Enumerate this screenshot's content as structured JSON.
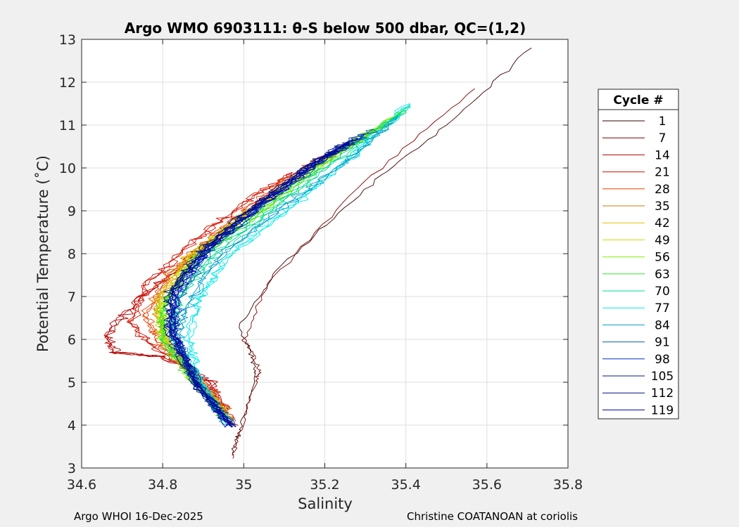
{
  "chart_data": {
    "type": "line",
    "title": "Argo WMO 6903111: θ-S below 500 dbar,  QC=(1,2)",
    "xlabel": "Salinity",
    "ylabel": "Potential Temperature (˚C)",
    "xlim": [
      34.6,
      35.8
    ],
    "ylim": [
      3,
      13
    ],
    "xticks": [
      "34.6",
      "34.8",
      "35",
      "35.2",
      "35.4",
      "35.6",
      "35.8"
    ],
    "yticks": [
      "3",
      "4",
      "5",
      "6",
      "7",
      "8",
      "9",
      "10",
      "11",
      "12",
      "13"
    ],
    "grid": true,
    "legend_title": "Cycle #",
    "legend_position": "right",
    "series": [
      {
        "name": "1",
        "color": "#3a0000",
        "salinity": [
          34.97,
          34.99,
          35.03,
          35.02,
          34.99,
          35.08,
          35.3,
          35.5,
          35.71
        ],
        "theta": [
          3.3,
          3.9,
          5.2,
          5.6,
          6.3,
          7.6,
          9.5,
          11.0,
          12.8
        ]
      },
      {
        "name": "7",
        "color": "#800000",
        "salinity": [
          34.97,
          34.99,
          35.03,
          35.04,
          35.0,
          35.06,
          35.3,
          35.57
        ],
        "theta": [
          3.2,
          3.8,
          5.0,
          5.3,
          6.0,
          7.3,
          9.7,
          11.85
        ]
      },
      {
        "name": "14",
        "color": "#b30000",
        "salinity": [
          34.97,
          34.92,
          34.8,
          34.68,
          34.66,
          34.75,
          34.9,
          35.05
        ],
        "theta": [
          4.0,
          5.0,
          5.6,
          5.7,
          6.1,
          7.0,
          8.1,
          9.3
        ]
      },
      {
        "name": "21",
        "color": "#d01000",
        "salinity": [
          34.97,
          34.9,
          34.78,
          34.72,
          34.76,
          34.88,
          35.0,
          35.12
        ],
        "theta": [
          4.1,
          5.1,
          5.8,
          6.4,
          7.3,
          8.3,
          9.2,
          9.9
        ]
      },
      {
        "name": "28",
        "color": "#e84000",
        "salinity": [
          34.96,
          34.88,
          34.79,
          34.76,
          34.82,
          34.95,
          35.1,
          35.2
        ],
        "theta": [
          4.2,
          5.1,
          5.9,
          6.6,
          7.6,
          8.6,
          9.7,
          10.3
        ]
      },
      {
        "name": "35",
        "color": "#d07a00",
        "salinity": [
          34.96,
          34.88,
          34.8,
          34.78,
          34.85,
          35.0,
          35.15,
          35.28
        ],
        "theta": [
          4.3,
          5.2,
          6.0,
          6.8,
          7.8,
          8.9,
          9.9,
          10.6
        ]
      },
      {
        "name": "42",
        "color": "#e0c000",
        "salinity": [
          34.96,
          34.87,
          34.8,
          34.79,
          34.86,
          35.02,
          35.2,
          35.35
        ],
        "theta": [
          4.2,
          5.2,
          6.1,
          6.9,
          7.9,
          9.0,
          10.2,
          11.0
        ]
      },
      {
        "name": "49",
        "color": "#c8e000",
        "salinity": [
          34.96,
          34.87,
          34.8,
          34.8,
          34.88,
          35.03,
          35.22,
          35.38
        ],
        "theta": [
          4.2,
          5.1,
          6.1,
          6.9,
          8.0,
          9.1,
          10.3,
          11.2
        ]
      },
      {
        "name": "56",
        "color": "#80f000",
        "salinity": [
          34.96,
          34.87,
          34.8,
          34.8,
          34.88,
          35.04,
          35.22,
          35.39
        ],
        "theta": [
          4.1,
          5.1,
          6.0,
          6.8,
          7.9,
          9.0,
          10.3,
          11.3
        ]
      },
      {
        "name": "63",
        "color": "#30e030",
        "salinity": [
          34.96,
          34.87,
          34.8,
          34.8,
          34.89,
          35.05,
          35.23,
          35.4
        ],
        "theta": [
          4.1,
          5.1,
          6.0,
          6.8,
          7.9,
          9.0,
          10.3,
          11.35
        ]
      },
      {
        "name": "70",
        "color": "#00d890",
        "salinity": [
          34.96,
          34.88,
          34.82,
          34.84,
          34.93,
          35.08,
          35.25,
          35.41
        ],
        "theta": [
          4.1,
          5.1,
          6.1,
          7.0,
          8.0,
          9.1,
          10.3,
          11.45
        ]
      },
      {
        "name": "77",
        "color": "#00e8e8",
        "salinity": [
          34.96,
          34.89,
          34.86,
          34.9,
          34.98,
          35.12,
          35.27,
          35.41
        ],
        "theta": [
          4.1,
          5.1,
          6.1,
          7.1,
          8.1,
          9.1,
          10.3,
          11.5
        ]
      },
      {
        "name": "84",
        "color": "#00a0c8",
        "salinity": [
          34.96,
          34.89,
          34.84,
          34.87,
          34.95,
          35.1,
          35.26,
          35.38
        ],
        "theta": [
          4.0,
          5.0,
          6.0,
          7.0,
          8.0,
          9.1,
          10.2,
          11.2
        ]
      },
      {
        "name": "91",
        "color": "#0060b0",
        "salinity": [
          34.97,
          34.88,
          34.83,
          34.84,
          34.92,
          35.06,
          35.2,
          35.32
        ],
        "theta": [
          4.0,
          5.0,
          6.1,
          7.0,
          8.1,
          9.2,
          10.2,
          10.9
        ]
      },
      {
        "name": "98",
        "color": "#0030c0",
        "salinity": [
          34.97,
          34.88,
          34.82,
          34.83,
          34.91,
          35.05,
          35.19,
          35.3
        ],
        "theta": [
          4.0,
          5.0,
          6.1,
          7.0,
          8.1,
          9.2,
          10.2,
          10.8
        ]
      },
      {
        "name": "105",
        "color": "#001890",
        "salinity": [
          34.97,
          34.88,
          34.82,
          34.82,
          34.9,
          35.04,
          35.18,
          35.28
        ],
        "theta": [
          3.95,
          5.0,
          6.2,
          7.1,
          8.1,
          9.2,
          10.2,
          10.7
        ]
      },
      {
        "name": "112",
        "color": "#000c80",
        "salinity": [
          34.97,
          34.88,
          34.82,
          34.82,
          34.9,
          35.04,
          35.17,
          35.26
        ],
        "theta": [
          3.95,
          5.0,
          6.2,
          7.1,
          8.1,
          9.2,
          10.1,
          10.6
        ]
      },
      {
        "name": "119",
        "color": "#0000a8",
        "salinity": [
          34.97,
          34.88,
          34.83,
          34.83,
          34.91,
          35.05,
          35.18,
          35.27
        ],
        "theta": [
          3.95,
          5.0,
          6.2,
          7.1,
          8.1,
          9.2,
          10.1,
          10.6
        ]
      }
    ]
  },
  "footer": {
    "left": "Argo WHOI 16-Dec-2025",
    "right": "Christine COATANOAN at coriolis"
  }
}
